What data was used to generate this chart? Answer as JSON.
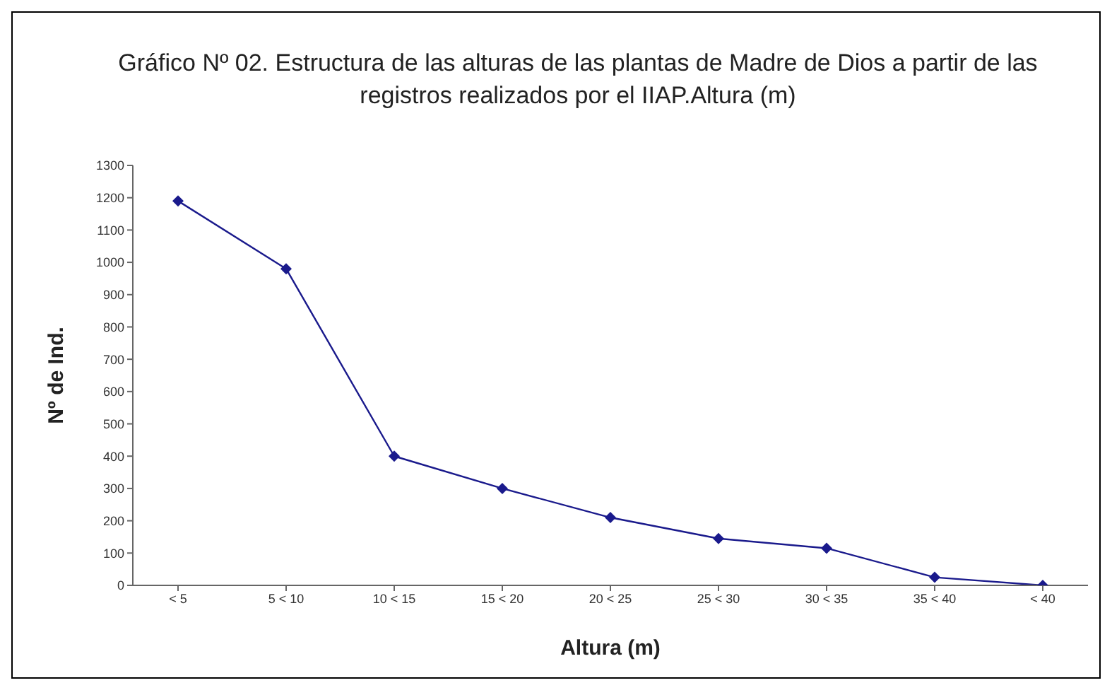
{
  "chart_data": {
    "type": "line",
    "title": "Gráfico Nº 02. Estructura de las alturas de las plantas de Madre de Dios a partir de las registros realizados por el IIAP.Altura (m)",
    "xlabel": "Altura (m)",
    "ylabel": "Nº de Ind.",
    "categories": [
      "< 5",
      "5 < 10",
      "10 < 15",
      "15 < 20",
      "20 < 25",
      "25 < 30",
      "30 < 35",
      "35 < 40",
      "< 40"
    ],
    "series": [
      {
        "color": "#1a1a8c",
        "values": [
          1190,
          980,
          400,
          300,
          210,
          145,
          115,
          25,
          0
        ]
      }
    ],
    "ylim": [
      0,
      1300
    ],
    "yticks": [
      0,
      100,
      200,
      300,
      400,
      500,
      600,
      700,
      800,
      900,
      1000,
      1100,
      1200,
      1300
    ],
    "grid": false,
    "legend": false,
    "marker": "diamond",
    "line_style": "solid"
  }
}
